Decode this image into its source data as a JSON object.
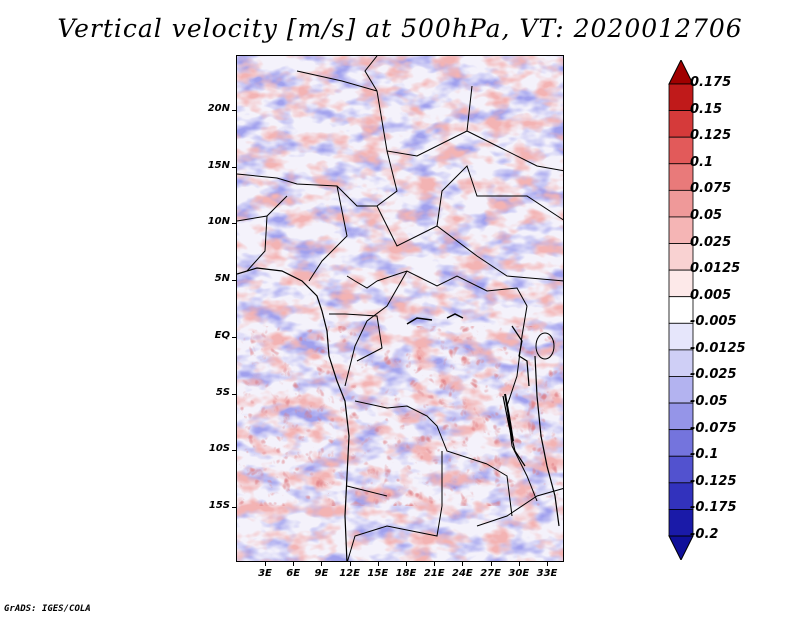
{
  "title": "Vertical velocity [m/s] at 500hPa, VT: 2020012706",
  "credit": "GrADS: IGES/COLA",
  "latitude_labels": [
    "20N",
    "15N",
    "10N",
    "5N",
    "EQ",
    "5S",
    "10S",
    "15S"
  ],
  "longitude_labels": [
    "3E",
    "6E",
    "9E",
    "12E",
    "15E",
    "18E",
    "21E",
    "24E",
    "27E",
    "30E",
    "33E"
  ],
  "colorbar": {
    "levels": [
      "0.175",
      "0.15",
      "0.125",
      "0.1",
      "0.075",
      "0.05",
      "0.025",
      "0.0125",
      "0.005",
      "-0.005",
      "-0.0125",
      "-0.025",
      "-0.05",
      "-0.075",
      "-0.1",
      "-0.125",
      "-0.175",
      "-0.2"
    ],
    "colors": [
      "#a00000",
      "#c01a1a",
      "#d53a3a",
      "#e25a5a",
      "#e97a7a",
      "#ef9999",
      "#f5b5b5",
      "#f9d2d2",
      "#fde9e9",
      "#ffffff",
      "#e6e6fb",
      "#cfcff6",
      "#b3b3f0",
      "#9595e8",
      "#7474dd",
      "#5252cf",
      "#3232bd",
      "#1a1aa8",
      "#10109a"
    ]
  },
  "colors": {
    "positive": "#cc2a2a",
    "negative": "#4a4ad8",
    "background": "#ffffff"
  }
}
